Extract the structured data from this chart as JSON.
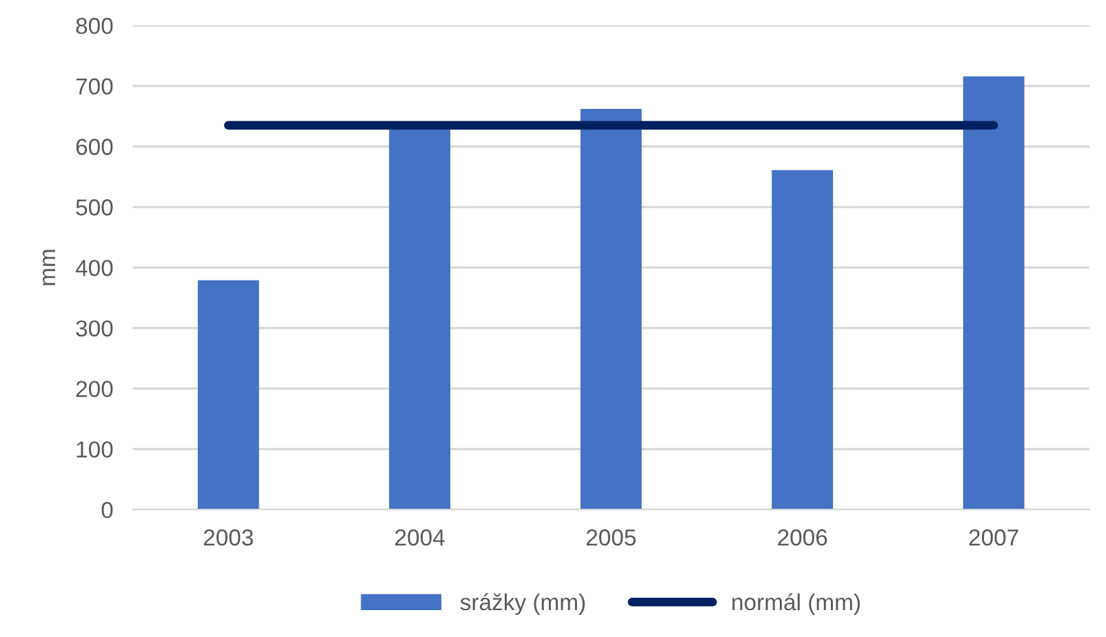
{
  "chart_data": {
    "type": "bar",
    "ylabel": "mm",
    "categories": [
      "2003",
      "2004",
      "2005",
      "2006",
      "2007"
    ],
    "series": [
      {
        "name": "srážky (mm)",
        "color": "#4472c4",
        "values": [
          379,
          632,
          662,
          561,
          716
        ]
      },
      {
        "name": "normál (mm)",
        "type": "line",
        "color": "#002060",
        "values": [
          635,
          635,
          635,
          635,
          635
        ]
      }
    ],
    "ylim": [
      0,
      800
    ],
    "yticks": [
      0,
      100,
      200,
      300,
      400,
      500,
      600,
      700,
      800
    ],
    "grid": "y",
    "legend": "bottom"
  }
}
